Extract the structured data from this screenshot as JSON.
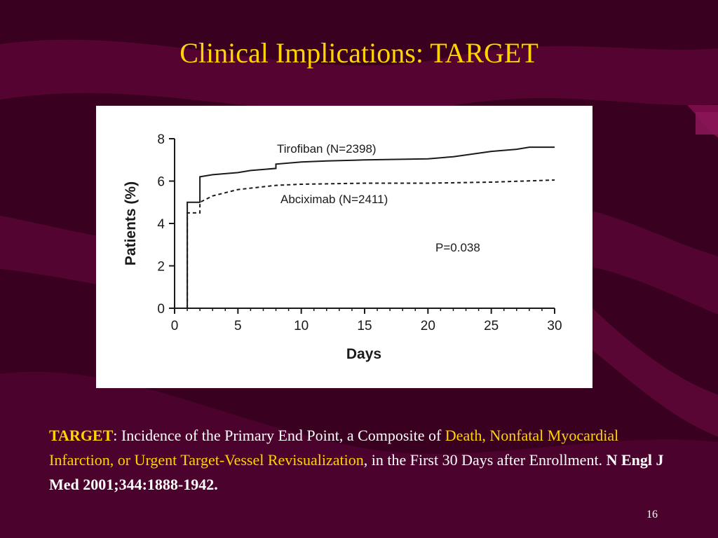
{
  "slide": {
    "title": "Clinical Implications: TARGET",
    "page_number": "16",
    "caption": {
      "trial_name": "TARGET",
      "text_1": ": Incidence of the Primary End Point, a Composite of ",
      "highlight": "Death, Nonfatal Myocardial Infarction, or Urgent Target-Vessel Revisualization",
      "text_2": ", in the First 30 Days after Enrollment. ",
      "citation": "N Engl J Med 2001;344:1888-1942."
    },
    "colors": {
      "background": "#3a0020",
      "accent": "#ffd400",
      "text": "#ffffff"
    }
  },
  "chart_data": {
    "type": "line",
    "xlabel": "Days",
    "ylabel": "Patients (%)",
    "xlim": [
      0,
      30
    ],
    "ylim": [
      0,
      8
    ],
    "x_ticks": [
      0,
      5,
      10,
      15,
      20,
      25,
      30
    ],
    "y_ticks": [
      0,
      2,
      4,
      6,
      8
    ],
    "grid": false,
    "annotation": "P=0.038",
    "series": [
      {
        "name": "Tirofiban (N=2398)",
        "style": "solid",
        "points": [
          [
            0,
            0
          ],
          [
            1,
            0
          ],
          [
            1,
            5.0
          ],
          [
            2,
            5.0
          ],
          [
            2,
            6.2
          ],
          [
            3,
            6.3
          ],
          [
            5,
            6.4
          ],
          [
            6,
            6.5
          ],
          [
            8,
            6.6
          ],
          [
            8,
            6.8
          ],
          [
            10,
            6.9
          ],
          [
            12,
            6.95
          ],
          [
            15,
            7.0
          ],
          [
            20,
            7.05
          ],
          [
            22,
            7.15
          ],
          [
            25,
            7.4
          ],
          [
            27,
            7.5
          ],
          [
            28,
            7.6
          ],
          [
            30,
            7.6
          ]
        ]
      },
      {
        "name": "Abciximab (N=2411)",
        "style": "dashed",
        "points": [
          [
            0,
            0
          ],
          [
            1,
            0
          ],
          [
            1,
            4.5
          ],
          [
            2,
            4.5
          ],
          [
            2,
            5.0
          ],
          [
            3,
            5.3
          ],
          [
            5,
            5.6
          ],
          [
            8,
            5.8
          ],
          [
            10,
            5.85
          ],
          [
            15,
            5.9
          ],
          [
            20,
            5.9
          ],
          [
            25,
            5.95
          ],
          [
            30,
            6.05
          ]
        ]
      }
    ]
  }
}
